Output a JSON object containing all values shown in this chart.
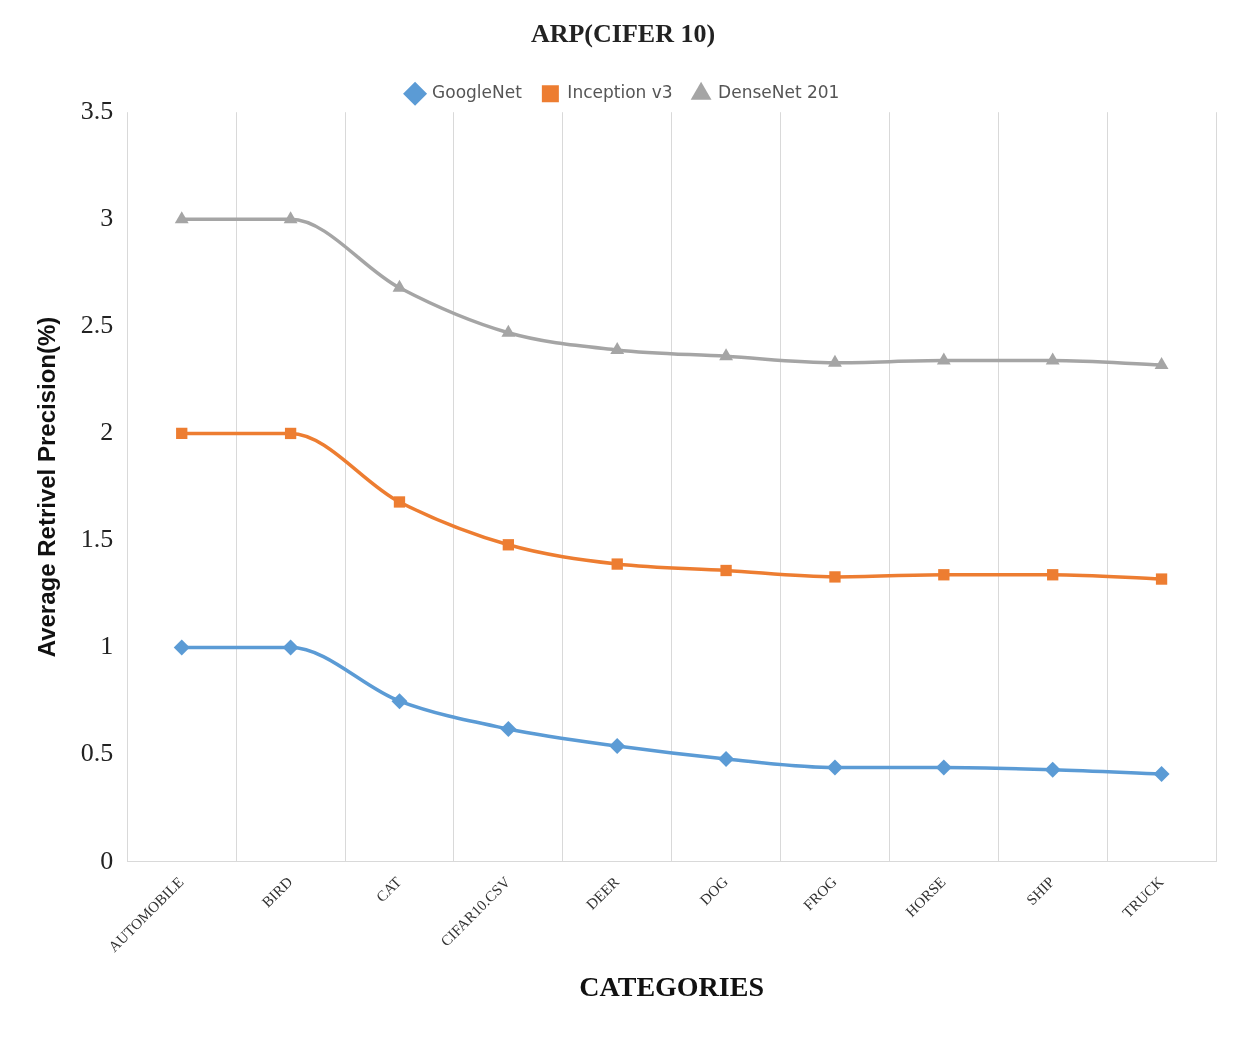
{
  "chart_data": {
    "type": "line",
    "title": "ARP(CIFER 10)",
    "xlabel": "CATEGORIES",
    "ylabel": "Average Retrivel Precision(%)",
    "categories": [
      "AUTOMOBILE",
      "BIRD",
      "CAT",
      "CIFAR10.CSV",
      "DEER",
      "DOG",
      "FROG",
      "HORSE",
      "SHIP",
      "TRUCK"
    ],
    "series": [
      {
        "name": "GoogleNet",
        "color": "#5b9bd5",
        "marker": "diamond",
        "values": [
          1,
          1,
          0.75,
          0.62,
          0.54,
          0.48,
          0.44,
          0.44,
          0.43,
          0.41
        ]
      },
      {
        "name": "Inception v3",
        "color": "#ed7d31",
        "marker": "square",
        "values": [
          2,
          2,
          1.68,
          1.48,
          1.39,
          1.36,
          1.33,
          1.34,
          1.34,
          1.32
        ]
      },
      {
        "name": "DenseNet 201",
        "color": "#a5a5a5",
        "marker": "triangle",
        "values": [
          3,
          3,
          2.68,
          2.47,
          2.39,
          2.36,
          2.33,
          2.34,
          2.34,
          2.32
        ]
      }
    ],
    "ylim": [
      0,
      3.5
    ],
    "yticks": [
      0,
      0.5,
      1,
      1.5,
      2,
      2.5,
      3,
      3.5
    ],
    "grid": "x",
    "legend": "top",
    "line_style": "solid"
  }
}
